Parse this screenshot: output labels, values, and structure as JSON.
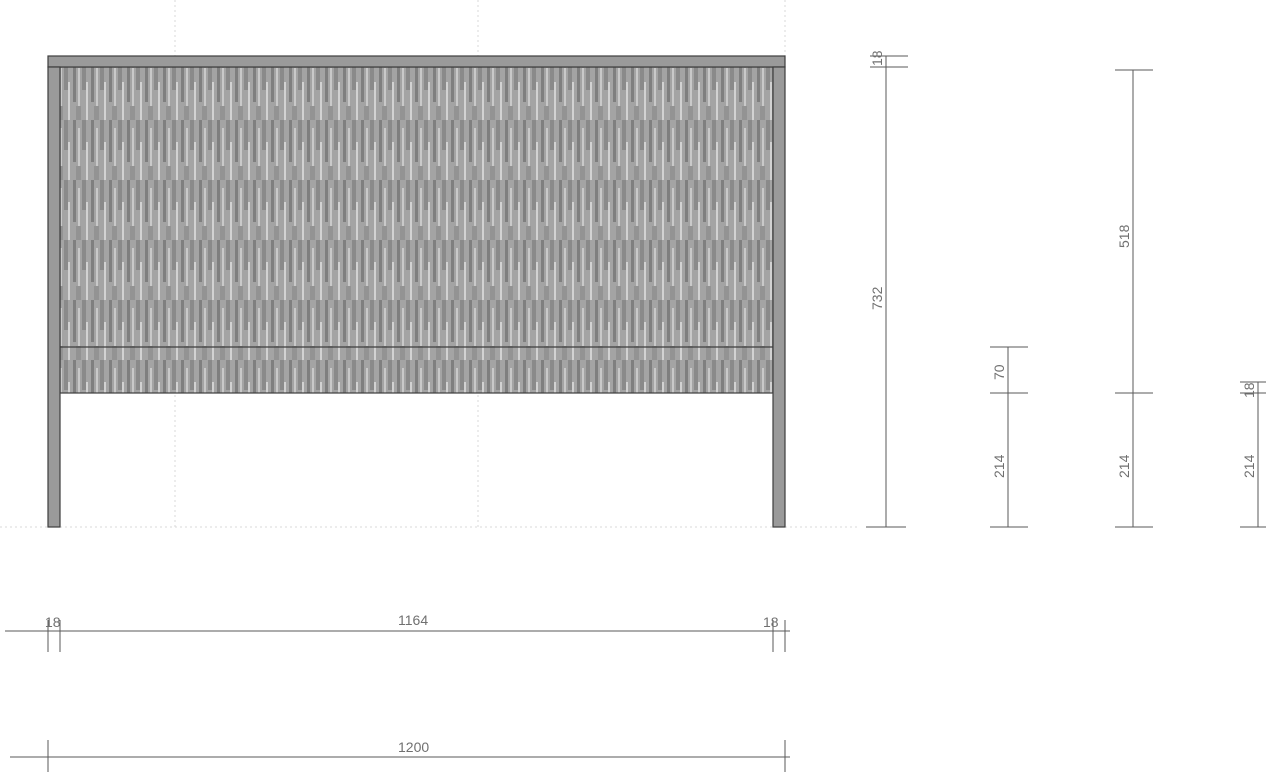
{
  "drawing": {
    "width_dims": {
      "left_panel": "18",
      "inner_span": "1164",
      "right_panel": "18",
      "overall": "1200"
    },
    "height_dims": {
      "overall": "732",
      "top_thickness": "18",
      "front_panel": "70",
      "front_panel_clearance": "214",
      "side_upper": "518",
      "side_clearance": "214",
      "shelf_thickness": "18",
      "shelf_clearance": "214"
    },
    "colors": {
      "panel_fill": "#9c9c9c",
      "panel_dark": "#7e7e7e",
      "panel_light": "#c8c8c8",
      "leg_fill": "#9a9a9a",
      "line": "#3d3d3d"
    }
  }
}
